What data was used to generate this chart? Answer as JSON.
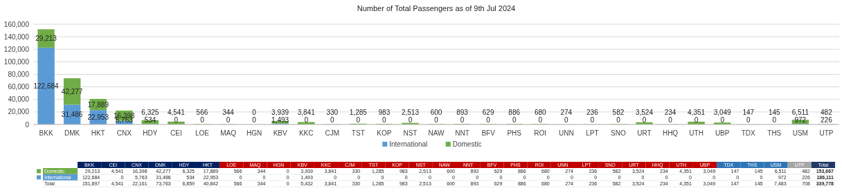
{
  "chart_data": [
    {
      "type": "bar",
      "title": "Number of Total Passengers as of 9th Jul 2024",
      "stacked": true,
      "categories": [
        "BKK",
        "DMK",
        "HKT",
        "CNX",
        "HDY",
        "CEI",
        "LOE",
        "MAQ",
        "HGN",
        "KBV",
        "KKC",
        "CJM",
        "TST",
        "KOP",
        "NST",
        "NAW",
        "NNT",
        "BFV",
        "PHS",
        "ROI",
        "UNN",
        "LPT",
        "SNO",
        "URT",
        "HHQ",
        "UTH",
        "UBP",
        "TDX",
        "THS",
        "USM",
        "UTP"
      ],
      "series": [
        {
          "name": "International",
          "color": "#5b9bd5",
          "values": [
            122684,
            31486,
            22953,
            5763,
            534,
            0,
            0,
            0,
            0,
            1493,
            0,
            0,
            0,
            0,
            0,
            0,
            0,
            0,
            0,
            0,
            0,
            0,
            0,
            0,
            0,
            0,
            0,
            0,
            0,
            972,
            226
          ],
          "value_labels": [
            "122,684",
            "31,486",
            "22,953",
            "5,763",
            "534",
            "0",
            "0",
            "0",
            "0",
            "1,493",
            "0",
            "0",
            "0",
            "0",
            "0",
            "0",
            "0",
            "0",
            "0",
            "0",
            "0",
            "0",
            "0",
            "0",
            "0",
            "0",
            "0",
            "0",
            "0",
            "972",
            "226"
          ]
        },
        {
          "name": "Domestic",
          "color": "#70ad47",
          "values": [
            29213,
            42277,
            17889,
            16398,
            6325,
            4541,
            566,
            344,
            0,
            3939,
            3841,
            330,
            1285,
            983,
            2513,
            600,
            893,
            629,
            886,
            680,
            274,
            236,
            582,
            3524,
            234,
            4351,
            3049,
            147,
            145,
            6511,
            482
          ],
          "value_labels": [
            "29,213",
            "42,277",
            "17,889",
            "16,398",
            "6,325",
            "4,541",
            "566",
            "344",
            "0",
            "3,939",
            "3,841",
            "330",
            "1,285",
            "983",
            "2,513",
            "600",
            "893",
            "629",
            "886",
            "680",
            "274",
            "236",
            "582",
            "3,524",
            "234",
            "4,351",
            "3,049",
            "147",
            "145",
            "6,511",
            "482"
          ]
        }
      ],
      "ylim": [
        0,
        160000
      ],
      "yticks": [
        {
          "value": 0,
          "label": "0"
        },
        {
          "value": 20000,
          "label": "20,000"
        },
        {
          "value": 40000,
          "label": "40,000"
        },
        {
          "value": 60000,
          "label": "60,000"
        },
        {
          "value": 80000,
          "label": "80,000"
        },
        {
          "value": 100000,
          "label": "100,000"
        },
        {
          "value": 120000,
          "label": "120,000"
        },
        {
          "value": 140000,
          "label": "140,000"
        },
        {
          "value": 160000,
          "label": "160,000"
        }
      ],
      "grid": "y",
      "legend": "bottom"
    },
    {
      "type": "other",
      "categories": [
        "BKK",
        "CEI",
        "CNX",
        "DMK",
        "HDY",
        "HKT",
        "LOE",
        "MAQ",
        "HGN",
        "KBV",
        "KKC",
        "CJM",
        "TST",
        "KOP",
        "NST",
        "NAW",
        "NNT",
        "BFV",
        "PHS",
        "ROI",
        "UNN",
        "LPT",
        "SNO",
        "URT",
        "HHQ",
        "UTH",
        "UBP",
        "TDX",
        "THS",
        "USM",
        "UTP",
        "Total"
      ],
      "colors": [
        "#002060",
        "#002060",
        "#002060",
        "#002060",
        "#002060",
        "#002060",
        "#c00000",
        "#c00000",
        "#c00000",
        "#c00000",
        "#c00000",
        "#c00000",
        "#c00000",
        "#c00000",
        "#c00000",
        "#c00000",
        "#c00000",
        "#c00000",
        "#c00000",
        "#c00000",
        "#c00000",
        "#c00000",
        "#c00000",
        "#c00000",
        "#c00000",
        "#c00000",
        "#c00000",
        "#2e75b6",
        "#2e75b6",
        "#2e75b6",
        "#a6a6a6",
        "#1f3864"
      ],
      "series": [
        {
          "name": "Domestic",
          "color": "#70ad47",
          "values": [
            29213,
            4541,
            16398,
            42277,
            6325,
            17889,
            566,
            344,
            0,
            3939,
            3841,
            330,
            1285,
            983,
            2513,
            600,
            893,
            629,
            886,
            680,
            274,
            236,
            582,
            3524,
            234,
            4351,
            3049,
            147,
            145,
            6511,
            482,
            153667
          ],
          "value_labels": [
            "29,213",
            "4,541",
            "16,398",
            "42,277",
            "6,325",
            "17,889",
            "566",
            "344",
            "0",
            "3,939",
            "3,841",
            "330",
            "1,285",
            "983",
            "2,513",
            "600",
            "893",
            "629",
            "886",
            "680",
            "274",
            "236",
            "582",
            "3,524",
            "234",
            "4,351",
            "3,049",
            "147",
            "145",
            "6,511",
            "482",
            "153,667"
          ]
        },
        {
          "name": "International",
          "color": "#5b9bd5",
          "values": [
            122684,
            0,
            5763,
            31486,
            534,
            22953,
            0,
            0,
            0,
            1493,
            0,
            0,
            0,
            0,
            0,
            0,
            0,
            0,
            0,
            0,
            0,
            0,
            0,
            0,
            0,
            0,
            0,
            0,
            0,
            972,
            226,
            186111
          ],
          "value_labels": [
            "122,684",
            "0",
            "5,763",
            "31,486",
            "534",
            "22,953",
            "0",
            "0",
            "0",
            "1,493",
            "0",
            "0",
            "0",
            "0",
            "0",
            "0",
            "0",
            "0",
            "0",
            "0",
            "0",
            "0",
            "0",
            "0",
            "0",
            "0",
            "0",
            "0",
            "0",
            "972",
            "226",
            "186,111"
          ]
        },
        {
          "name": "Total",
          "values": [
            151897,
            4541,
            22161,
            73763,
            6859,
            40842,
            566,
            344,
            0,
            5432,
            3841,
            330,
            1285,
            983,
            2513,
            600,
            893,
            629,
            886,
            680,
            274,
            236,
            582,
            3524,
            234,
            4351,
            3049,
            147,
            145,
            7483,
            708,
            339778
          ],
          "value_labels": [
            "151,897",
            "4,541",
            "22,161",
            "73,763",
            "6,859",
            "40,842",
            "566",
            "344",
            "0",
            "5,432",
            "3,841",
            "330",
            "1,285",
            "983",
            "2,513",
            "600",
            "893",
            "629",
            "886",
            "680",
            "274",
            "236",
            "582",
            "3,524",
            "234",
            "4,351",
            "3,049",
            "147",
            "145",
            "7,483",
            "708",
            "339,778"
          ]
        }
      ]
    }
  ]
}
